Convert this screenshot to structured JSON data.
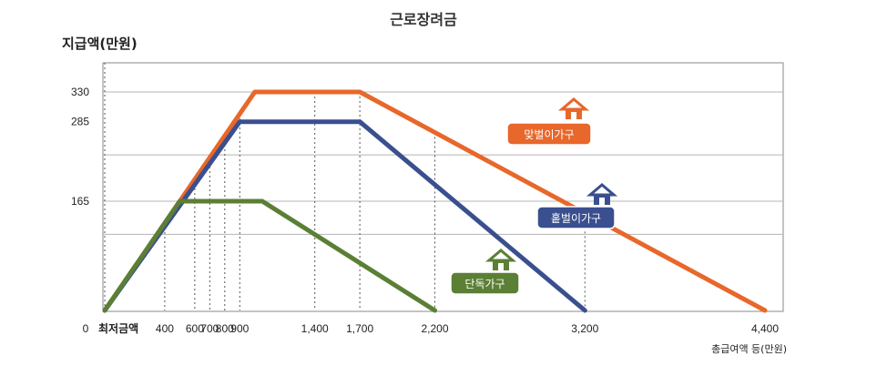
{
  "chart_data": {
    "type": "line",
    "title": "근로장려금",
    "ylabel": "지급액(만원)",
    "xlabel": "총급여액 등(만원)",
    "x_origin_label": "0",
    "min_wage_label": "최저금액",
    "xlim": [
      0,
      4400
    ],
    "ylim": [
      0,
      385
    ],
    "y_ticks": [
      0,
      165,
      285,
      330
    ],
    "y_tick_labels": [
      "",
      "165",
      "285",
      "330"
    ],
    "x_ticks": [
      400,
      600,
      700,
      800,
      900,
      1400,
      1700,
      2200,
      3200,
      4400
    ],
    "x_tick_labels": [
      "400",
      "600",
      "700",
      "800",
      "900",
      "1,400",
      "1,700",
      "2,200",
      "3,200",
      "4,400"
    ],
    "grid": "horizontal",
    "series": [
      {
        "name": "맞벌이가구",
        "color": "#e8672a",
        "icon": "house-icon",
        "x": [
          0,
          1000,
          1700,
          4400
        ],
        "y": [
          0,
          330,
          330,
          0
        ]
      },
      {
        "name": "홑벌이가구",
        "color": "#3a4f8f",
        "icon": "house-icon",
        "x": [
          0,
          900,
          1700,
          3200
        ],
        "y": [
          0,
          285,
          285,
          0
        ]
      },
      {
        "name": "단독가구",
        "color": "#5b7f35",
        "icon": "house-icon",
        "x": [
          0,
          500,
          1050,
          2200
        ],
        "y": [
          0,
          165,
          165,
          0
        ]
      }
    ]
  }
}
